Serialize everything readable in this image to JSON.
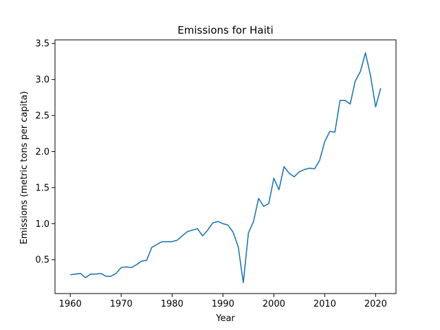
{
  "chart_data": {
    "type": "line",
    "title": "Emissions for Haiti",
    "xlabel": "Year",
    "ylabel": "Emissions (metric tons per capita)",
    "xlim": [
      1957,
      2024
    ],
    "ylim": [
      0.03,
      3.55
    ],
    "xticks": [
      1960,
      1970,
      1980,
      1990,
      2000,
      2010,
      2020
    ],
    "yticks": [
      0.5,
      1.0,
      1.5,
      2.0,
      2.5,
      3.0,
      3.5
    ],
    "ytick_labels": [
      "0.5",
      "1.0",
      "1.5",
      "2.0",
      "2.5",
      "3.0",
      "3.5"
    ],
    "grid": false,
    "series_color": "#1f77b4",
    "series": [
      {
        "x": [
          1960,
          1961,
          1962,
          1963,
          1964,
          1965,
          1966,
          1967,
          1968,
          1969,
          1970,
          1971,
          1972,
          1973,
          1974,
          1975,
          1976,
          1977,
          1978,
          1979,
          1980,
          1981,
          1982,
          1983,
          1984,
          1985,
          1986,
          1987,
          1988,
          1989,
          1990,
          1991,
          1992,
          1993,
          1994,
          1995,
          1996,
          1997,
          1998,
          1999,
          2000,
          2001,
          2002,
          2003,
          2004,
          2005,
          2006,
          2007,
          2008,
          2009,
          2010,
          2011,
          2012,
          2013,
          2014,
          2015,
          2016,
          2017,
          2018,
          2019,
          2020,
          2021
        ],
        "y": [
          0.29,
          0.3,
          0.31,
          0.25,
          0.3,
          0.3,
          0.31,
          0.27,
          0.27,
          0.31,
          0.39,
          0.4,
          0.39,
          0.43,
          0.48,
          0.49,
          0.67,
          0.71,
          0.75,
          0.75,
          0.75,
          0.77,
          0.83,
          0.89,
          0.91,
          0.93,
          0.83,
          0.91,
          1.01,
          1.03,
          1.0,
          0.98,
          0.88,
          0.68,
          0.18,
          0.87,
          1.03,
          1.35,
          1.24,
          1.28,
          1.63,
          1.47,
          1.79,
          1.7,
          1.65,
          1.72,
          1.75,
          1.77,
          1.76,
          1.88,
          2.14,
          2.28,
          2.27,
          2.71,
          2.71,
          2.66,
          2.98,
          3.11,
          3.37,
          3.05,
          2.62,
          2.88
        ]
      }
    ]
  }
}
